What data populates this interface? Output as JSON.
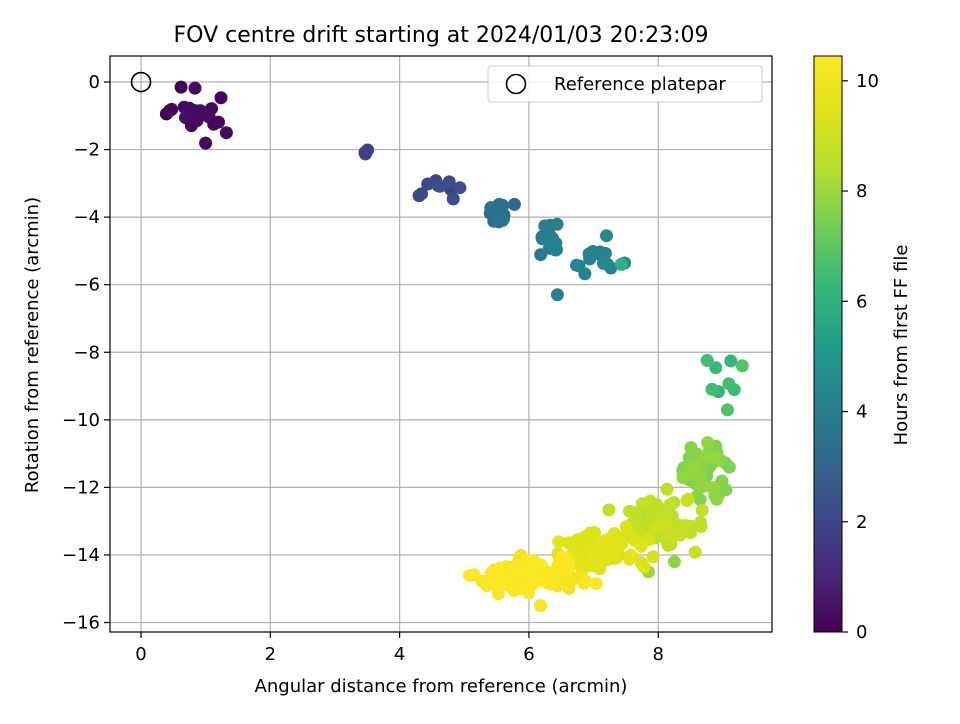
{
  "chart_data": {
    "type": "scatter",
    "title": "FOV centre drift starting at 2024/01/03 20:23:09",
    "xlabel": "Angular distance from reference (arcmin)",
    "ylabel": "Rotation from reference (arcmin)",
    "xlim": [
      -0.48,
      9.76
    ],
    "ylim": [
      -16.28,
      0.77
    ],
    "xticks": [
      0,
      2,
      4,
      6,
      8
    ],
    "yticks": [
      0,
      -2,
      -4,
      -6,
      -8,
      -10,
      -12,
      -14,
      -16
    ],
    "grid": true,
    "legend": {
      "position": "top-right",
      "entries": [
        "Reference platepar"
      ]
    },
    "reference_point": {
      "label": "Reference platepar",
      "x": 0,
      "y": 0,
      "marker": "open-circle"
    },
    "colorbar": {
      "label": "Hours from first FF file",
      "range": [
        0,
        10.45
      ],
      "ticks": [
        0,
        2,
        4,
        6,
        8,
        10
      ],
      "colormap": "viridis"
    },
    "clusters": [
      {
        "hours": 0.2,
        "cx": 0.9,
        "cy": -1.0,
        "sx": 0.22,
        "sy": 0.3,
        "n": 20
      },
      {
        "hours": 1.7,
        "cx": 3.48,
        "cy": -2.05,
        "sx": 0.02,
        "sy": 0.05,
        "n": 3
      },
      {
        "hours": 2.2,
        "cx": 4.6,
        "cy": -3.15,
        "sx": 0.2,
        "sy": 0.28,
        "n": 10
      },
      {
        "hours": 3.3,
        "cx": 5.6,
        "cy": -3.9,
        "sx": 0.12,
        "sy": 0.22,
        "n": 14
      },
      {
        "hours": 3.9,
        "cx": 6.35,
        "cy": -4.5,
        "sx": 0.18,
        "sy": 0.35,
        "n": 14
      },
      {
        "hours": 4.3,
        "cx": 7.05,
        "cy": -5.2,
        "sx": 0.18,
        "sy": 0.25,
        "n": 14
      },
      {
        "hours": 6.5,
        "cx": 8.9,
        "cy": -8.9,
        "sx": 0.22,
        "sy": 0.3,
        "n": 8
      },
      {
        "hours": 7.6,
        "cx": 8.7,
        "cy": -11.4,
        "sx": 0.17,
        "sy": 0.45,
        "n": 70
      },
      {
        "hours": 8.6,
        "cx": 8.05,
        "cy": -13.1,
        "sx": 0.3,
        "sy": 0.35,
        "n": 65
      },
      {
        "hours": 9.4,
        "cx": 7.15,
        "cy": -13.9,
        "sx": 0.35,
        "sy": 0.28,
        "n": 75
      },
      {
        "hours": 10.1,
        "cx": 6.2,
        "cy": -14.55,
        "sx": 0.3,
        "sy": 0.25,
        "n": 80
      },
      {
        "hours": 10.4,
        "cx": 5.6,
        "cy": -14.75,
        "sx": 0.22,
        "sy": 0.22,
        "n": 35
      }
    ],
    "points": [
      {
        "x": 0.62,
        "y": -0.15,
        "hours": 0.1
      },
      {
        "x": 1.32,
        "y": -1.5,
        "hours": 0.3
      },
      {
        "x": 0.44,
        "y": -0.85,
        "hours": 0.1
      },
      {
        "x": 6.44,
        "y": -6.3,
        "hours": 4.2
      },
      {
        "x": 7.43,
        "y": -5.4,
        "hours": 6.0
      },
      {
        "x": 9.3,
        "y": -8.4,
        "hours": 6.8
      },
      {
        "x": 8.25,
        "y": -14.2,
        "hours": 7.8
      },
      {
        "x": 7.85,
        "y": -14.5,
        "hours": 8.0
      },
      {
        "x": 6.18,
        "y": -15.5,
        "hours": 10.3
      },
      {
        "x": 5.08,
        "y": -14.6,
        "hours": 10.4
      },
      {
        "x": 7.2,
        "y": -4.55,
        "hours": 4.5
      },
      {
        "x": 9.1,
        "y": -11.4,
        "hours": 7.5
      }
    ]
  }
}
